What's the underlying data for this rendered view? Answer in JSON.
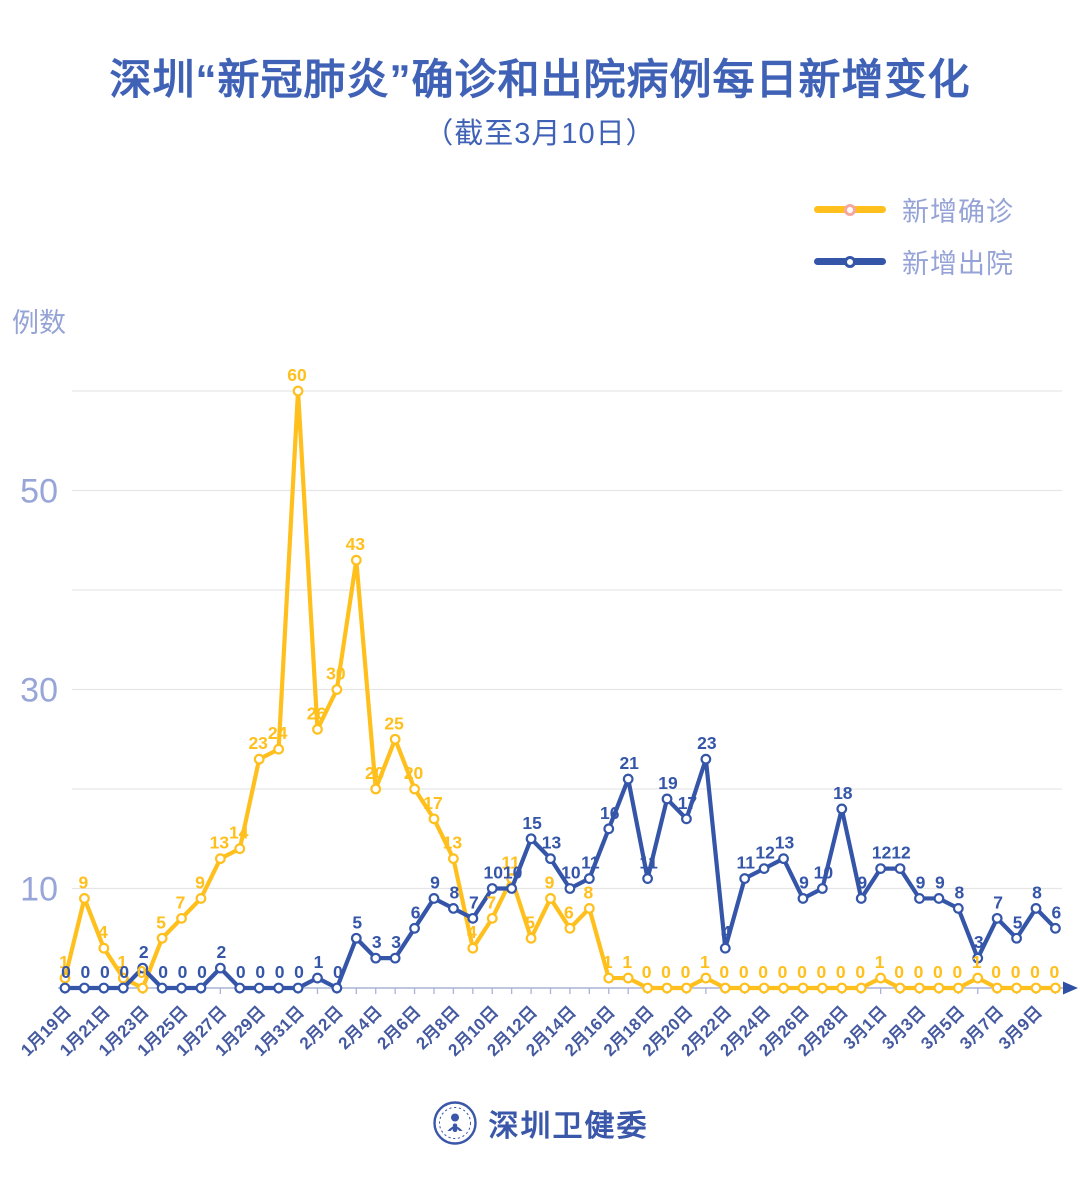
{
  "title": "深圳“新冠肺炎”确诊和出院病例每日新增变化",
  "subtitle": "（截至3月10日）",
  "legend": {
    "items": [
      {
        "label": "新增确诊",
        "color": "#ffc01e",
        "marker_ring": "#f5a8a0"
      },
      {
        "label": "新增出院",
        "color": "#3556a8",
        "marker_ring": "#3556a8"
      }
    ]
  },
  "y_axis_title": "例数",
  "footer": {
    "brand": "深圳卫健委",
    "logo": "shenzhen-health-commission-emblem"
  },
  "chart_data": {
    "type": "line",
    "x": [
      "1月19日",
      "1月20日",
      "1月21日",
      "1月22日",
      "1月23日",
      "1月24日",
      "1月25日",
      "1月26日",
      "1月27日",
      "1月28日",
      "1月29日",
      "1月30日",
      "1月31日",
      "2月1日",
      "2月2日",
      "2月3日",
      "2月4日",
      "2月5日",
      "2月6日",
      "2月7日",
      "2月8日",
      "2月9日",
      "2月10日",
      "2月11日",
      "2月12日",
      "2月13日",
      "2月14日",
      "2月15日",
      "2月16日",
      "2月17日",
      "2月18日",
      "2月19日",
      "2月20日",
      "2月21日",
      "2月22日",
      "2月23日",
      "2月24日",
      "2月25日",
      "2月26日",
      "2月27日",
      "2月28日",
      "2月29日",
      "3月1日",
      "3月2日",
      "3月3日",
      "3月4日",
      "3月5日",
      "3月6日",
      "3月7日",
      "3月8日",
      "3月9日",
      "3月10日"
    ],
    "x_label_every": 2,
    "series": [
      {
        "name": "新增确诊",
        "color": "#ffc01e",
        "values": [
          1,
          9,
          4,
          1,
          0,
          5,
          7,
          9,
          13,
          14,
          23,
          24,
          60,
          26,
          30,
          43,
          20,
          25,
          20,
          17,
          13,
          4,
          7,
          11,
          5,
          9,
          6,
          8,
          1,
          1,
          0,
          0,
          0,
          1,
          0,
          0,
          0,
          0,
          0,
          0,
          0,
          0,
          1,
          0,
          0,
          0,
          0,
          1,
          0,
          0,
          0,
          0
        ]
      },
      {
        "name": "新增出院",
        "color": "#3556a8",
        "values": [
          0,
          0,
          0,
          0,
          2,
          0,
          0,
          0,
          2,
          0,
          0,
          0,
          0,
          1,
          0,
          5,
          3,
          3,
          6,
          9,
          8,
          7,
          10,
          10,
          15,
          13,
          10,
          11,
          16,
          21,
          11,
          19,
          17,
          23,
          4,
          11,
          12,
          13,
          9,
          10,
          18,
          9,
          12,
          12,
          9,
          9,
          8,
          3,
          7,
          5,
          8,
          6
        ]
      }
    ],
    "ylabel": "例数",
    "y_axis_ticks": [
      10,
      30,
      50
    ],
    "ylim": [
      0,
      62
    ],
    "grid_interval": 10,
    "grid": true,
    "legend_position": "top-right",
    "point_labels": true
  }
}
